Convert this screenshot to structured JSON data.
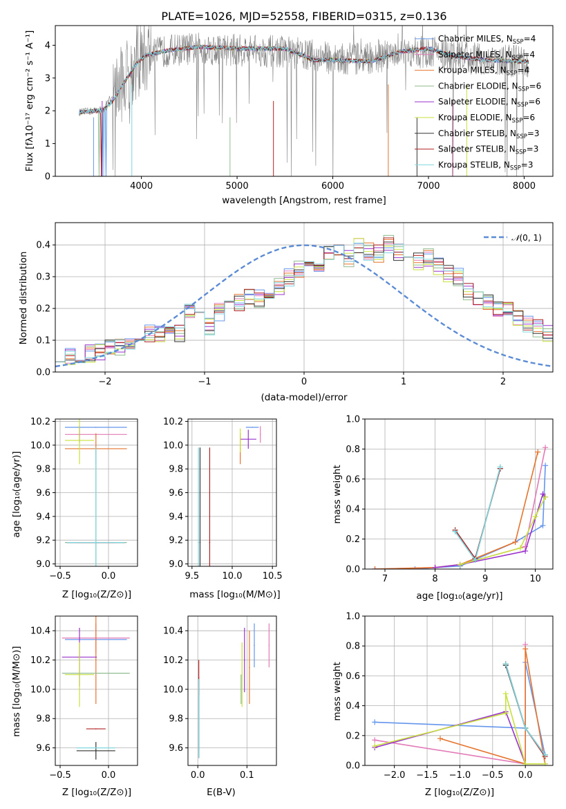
{
  "title": "PLATE=1026, MJD=52558, FIBERID=0315, z=0.136",
  "colors": [
    "#6495ED",
    "#E27AB7",
    "#E6732C",
    "#8FBC8F",
    "#9932CC",
    "#C8E03A",
    "#333333",
    "#B22222",
    "#7ED6DF"
  ],
  "legend_labels": [
    "Chabrier MILES, N",
    "Salpeter MILES, N",
    "Kroupa MILES, N",
    "Chabrier ELODIE, N",
    "Salpeter ELODIE, N",
    "Kroupa ELODIE, N",
    "Chabrier STELIB, N",
    "Salpeter STELIB, N",
    "Kroupa STELIB, N"
  ],
  "legend_nssp": [
    "=4",
    "=4",
    "=4",
    "=6",
    "=6",
    "=6",
    "=3",
    "=3",
    "=3"
  ],
  "legend_sub": "SSP",
  "hist_legend": "(0, 1)",
  "labels": {
    "spec_x": "wavelength [Angstrom, rest frame]",
    "spec_y": "Flux [fλ10⁻¹⁷ erg cm⁻² s⁻¹ A⁻¹]",
    "hist_x": "(data-model)/error",
    "hist_y": "Normed distribution",
    "zp_x": "Z [log₁₀(Z/Z⊙)]",
    "age_y": "age  [log₁₀(age/yr)]",
    "mass_x": "mass [log₁₀(M/M⊙)]",
    "mw_y": "mass weight",
    "mw_age_x": "age  [log₁₀(age/yr)]",
    "mass_y": "mass [log₁₀(M/M⊙)]",
    "ebv_x": "E(B-V)"
  },
  "chart_data": [
    {
      "type": "line",
      "title": "PLATE=1026, MJD=52558, FIBERID=0315, z=0.136",
      "xlabel": "wavelength [Angstrom, rest frame]",
      "ylabel": "Flux [fλ10⁻¹⁷ erg cm⁻² s⁻¹ A⁻¹]",
      "xlim": [
        3100,
        8300
      ],
      "ylim": [
        0,
        4.6
      ],
      "xticks": [
        4000,
        5000,
        6000,
        7000,
        8000
      ],
      "yticks": [
        0,
        1,
        2,
        3,
        4
      ],
      "grid": false,
      "legend": "upper right",
      "data_color": "#808080",
      "data_envelope": {
        "x": [
          3350,
          3500,
          3600,
          3700,
          3900,
          4000,
          4300,
          4600,
          5000,
          5500,
          6000,
          6400,
          6700,
          7000,
          7300,
          7600,
          8050
        ],
        "y": [
          1.95,
          2.0,
          2.05,
          2.5,
          3.25,
          3.65,
          3.85,
          3.9,
          3.85,
          3.8,
          3.6,
          3.6,
          3.75,
          3.8,
          3.65,
          3.55,
          3.5
        ]
      },
      "model": {
        "x": [
          3350,
          3500,
          3600,
          3700,
          3850,
          3950,
          4050,
          4300,
          4600,
          5000,
          5500,
          5800,
          6000,
          6400,
          6700,
          7000,
          7300,
          7600,
          8050
        ],
        "y": [
          1.95,
          2.0,
          2.0,
          2.3,
          3.0,
          3.45,
          3.7,
          3.85,
          3.95,
          3.9,
          3.9,
          3.55,
          3.55,
          3.5,
          3.8,
          3.9,
          3.65,
          3.55,
          3.5
        ]
      }
    },
    {
      "type": "bar",
      "xlabel": "(data-model)/error",
      "ylabel": "Normed distribution",
      "xlim": [
        -2.5,
        2.5
      ],
      "ylim": [
        0,
        0.47
      ],
      "xticks": [
        -2,
        -1,
        0,
        1,
        2
      ],
      "yticks": [
        0,
        0.1,
        0.2,
        0.3,
        0.4
      ],
      "grid": true,
      "legend": "upper right",
      "bin_width": 0.1,
      "bins_from": -2.5,
      "histogram_main": [
        0.06,
        0.045,
        0.05,
        0.06,
        0.058,
        0.075,
        0.08,
        0.09,
        0.1,
        0.12,
        0.125,
        0.13,
        0.12,
        0.19,
        0.17,
        0.14,
        0.19,
        0.21,
        0.22,
        0.24,
        0.23,
        0.26,
        0.27,
        0.3,
        0.32,
        0.35,
        0.34,
        0.37,
        0.39,
        0.36,
        0.4,
        0.38,
        0.37,
        0.4,
        0.38,
        0.37,
        0.35,
        0.36,
        0.33,
        0.31,
        0.3,
        0.25,
        0.23,
        0.22,
        0.2,
        0.19,
        0.17,
        0.15,
        0.14,
        0.12,
        0.1,
        0.09,
        0.08,
        0.07,
        0.06,
        0.055,
        0.05,
        0.045,
        0.04,
        0.05,
        0.055,
        0.05
      ],
      "gaussian": {
        "mu": 0,
        "sigma": 1
      }
    },
    {
      "type": "scatter",
      "xlabel": "Z [log₁₀(Z/Z⊙)]",
      "ylabel": "age  [log₁₀(age/yr)]",
      "xlim": [
        -0.55,
        0.3
      ],
      "ylim": [
        8.98,
        10.22
      ],
      "xticks": [
        -0.5,
        0.0
      ],
      "yticks": [
        9.0,
        9.2,
        9.4,
        9.6,
        9.8,
        10.0,
        10.2
      ],
      "grid": true,
      "points": [
        {
          "x": -0.13,
          "y": 10.15,
          "xerr": 0.32,
          "yerr": 0.0
        },
        {
          "x": -0.13,
          "y": 10.09,
          "xerr": 0.32,
          "yerr": 0.0
        },
        {
          "x": -0.13,
          "y": 9.97,
          "xerr": 0.32,
          "yerr": 0.13
        },
        {
          "x": -0.13,
          "y": 9.18,
          "xerr": 0.32,
          "yerr": 0.8
        },
        {
          "x": -0.3,
          "y": 10.09,
          "xerr": 0.0,
          "yerr": 0.07
        },
        {
          "x": -0.3,
          "y": 10.04,
          "xerr": 0.15,
          "yerr": 0.2
        },
        {
          "x": -0.13,
          "y": 9.18,
          "xerr": 0.3,
          "yerr": 0.0
        },
        {
          "x": -0.13,
          "y": 9.18,
          "xerr": 0.2,
          "yerr": 0.0
        },
        {
          "x": -0.13,
          "y": 9.18,
          "xerr": 0.3,
          "yerr": 0.8
        }
      ]
    },
    {
      "type": "scatter",
      "xlabel": "mass [log₁₀(M/M⊙)]",
      "xlim": [
        9.45,
        10.55
      ],
      "ylim": [
        8.98,
        10.22
      ],
      "xticks": [
        9.5,
        10.0,
        10.5
      ],
      "yticks": [
        9.0,
        9.2,
        9.4,
        9.6,
        9.8,
        10.0,
        10.2
      ],
      "grid": true,
      "points": [
        {
          "x": 10.25,
          "y": 10.15,
          "xerr": 0.08,
          "yerr": 0.0
        },
        {
          "x": 10.35,
          "y": 10.09,
          "xerr": 0.0,
          "yerr": 0.07
        },
        {
          "x": 10.1,
          "y": 9.97,
          "xerr": 0.0,
          "yerr": 0.13
        },
        {
          "x": 10.2,
          "y": 10.05,
          "xerr": 0.0,
          "yerr": 0.0
        },
        {
          "x": 10.2,
          "y": 10.05,
          "xerr": 0.1,
          "yerr": 0.08
        },
        {
          "x": 10.1,
          "y": 10.04,
          "xerr": 0.0,
          "yerr": 0.1
        },
        {
          "x": 9.6,
          "y": 9.18,
          "xerr": 0.0,
          "yerr": 0.8
        },
        {
          "x": 9.72,
          "y": 9.18,
          "xerr": 0.0,
          "yerr": 0.8
        },
        {
          "x": 9.58,
          "y": 9.18,
          "xerr": 0.0,
          "yerr": 0.8
        }
      ]
    },
    {
      "type": "line",
      "xlabel": "age  [log₁₀(age/yr)]",
      "ylabel": "mass weight",
      "xlim": [
        6.6,
        10.35
      ],
      "ylim": [
        0,
        1.0
      ],
      "xticks": [
        7,
        8,
        9,
        10
      ],
      "yticks": [
        0,
        0.2,
        0.4,
        0.6,
        0.8,
        1.0
      ],
      "grid": true,
      "series": [
        {
          "x": [
            6.8,
            7.6,
            8.0,
            8.5,
            9.6,
            10.15,
            10.2
          ],
          "y": [
            0.0,
            0.0,
            0.01,
            0.02,
            0.18,
            0.29,
            0.69
          ]
        },
        {
          "x": [
            6.8,
            8.0,
            8.5,
            9.8,
            10.2
          ],
          "y": [
            0.0,
            0.01,
            0.03,
            0.15,
            0.81
          ]
        },
        {
          "x": [
            6.8,
            8.0,
            8.5,
            9.6,
            10.05
          ],
          "y": [
            0.0,
            0.01,
            0.03,
            0.18,
            0.78
          ]
        },
        {
          "x": [
            8.4,
            8.8,
            9.3
          ],
          "y": [
            0.25,
            0.06,
            0.68
          ]
        },
        {
          "x": [
            8.0,
            8.5,
            9.8,
            10.15,
            10.2
          ],
          "y": [
            0.01,
            0.03,
            0.12,
            0.5,
            0.48
          ]
        },
        {
          "x": [
            8.5,
            9.7,
            10.0,
            10.2
          ],
          "y": [
            0.03,
            0.14,
            0.35,
            0.48
          ]
        },
        {
          "x": [
            8.4,
            8.8,
            9.3
          ],
          "y": [
            0.26,
            0.07,
            0.67
          ]
        },
        {
          "x": [
            8.4,
            8.8,
            9.3
          ],
          "y": [
            0.26,
            0.07,
            0.67
          ]
        },
        {
          "x": [
            8.4,
            8.8,
            9.3
          ],
          "y": [
            0.25,
            0.06,
            0.68
          ]
        }
      ]
    },
    {
      "type": "scatter",
      "xlabel": "Z [log₁₀(Z/Z⊙)]",
      "ylabel": "mass [log₁₀(M/M⊙)]",
      "xlim": [
        -0.55,
        0.3
      ],
      "ylim": [
        9.48,
        10.5
      ],
      "xticks": [
        -0.5,
        0.0
      ],
      "yticks": [
        9.6,
        9.8,
        10.0,
        10.2,
        10.4
      ],
      "grid": true,
      "points": [
        {
          "x": -0.13,
          "y": 10.34,
          "xerr": 0.32,
          "yerr": 0.0
        },
        {
          "x": -0.13,
          "y": 10.35,
          "xerr": 0.35,
          "yerr": 0.1
        },
        {
          "x": -0.13,
          "y": 10.2,
          "xerr": 0.0,
          "yerr": 0.3
        },
        {
          "x": -0.13,
          "y": 10.11,
          "xerr": 0.35,
          "yerr": 0.0
        },
        {
          "x": -0.3,
          "y": 10.22,
          "xerr": 0.18,
          "yerr": 0.2
        },
        {
          "x": -0.3,
          "y": 10.1,
          "xerr": 0.15,
          "yerr": 0.22
        },
        {
          "x": -0.13,
          "y": 9.58,
          "xerr": 0.2,
          "yerr": 0.06
        },
        {
          "x": -0.13,
          "y": 9.73,
          "xerr": 0.1,
          "yerr": 0.0
        },
        {
          "x": -0.13,
          "y": 9.6,
          "xerr": 0.2,
          "yerr": 0.0
        }
      ]
    },
    {
      "type": "scatter",
      "xlabel": "E(B-V)",
      "xlim": [
        -0.02,
        0.16
      ],
      "ylim": [
        9.48,
        10.5
      ],
      "xticks": [
        0.0,
        0.1
      ],
      "yticks": [
        9.6,
        9.8,
        10.0,
        10.2,
        10.4
      ],
      "grid": true,
      "points": [
        {
          "x": 0.115,
          "y": 10.3,
          "xerr": 0.0,
          "yerr": 0.15
        },
        {
          "x": 0.145,
          "y": 10.3,
          "xerr": 0.0,
          "yerr": 0.15
        },
        {
          "x": 0.105,
          "y": 10.15,
          "xerr": 0.0,
          "yerr": 0.25
        },
        {
          "x": 0.088,
          "y": 10.0,
          "xerr": 0.0,
          "yerr": 0.1
        },
        {
          "x": 0.095,
          "y": 10.2,
          "xerr": 0.0,
          "yerr": 0.22
        },
        {
          "x": 0.09,
          "y": 10.1,
          "xerr": 0.0,
          "yerr": 0.22
        },
        {
          "x": 0.002,
          "y": 9.8,
          "xerr": 0.0,
          "yerr": 0.27
        },
        {
          "x": 0.002,
          "y": 10.08,
          "xerr": 0.0,
          "yerr": 0.12
        },
        {
          "x": 0.002,
          "y": 9.8,
          "xerr": 0.0,
          "yerr": 0.27
        }
      ]
    },
    {
      "type": "line",
      "xlabel": "Z [log₁₀(Z/Z⊙)]",
      "ylabel": "mass weight",
      "xlim": [
        -2.45,
        0.42
      ],
      "ylim": [
        0,
        1.0
      ],
      "xticks": [
        -2.0,
        -1.5,
        -1.0,
        -0.5,
        0.0
      ],
      "yticks": [
        0,
        0.2,
        0.4,
        0.6,
        0.8,
        1.0
      ],
      "grid": true,
      "series": [
        {
          "x": [
            -2.3,
            0.0,
            0.0,
            0.3
          ],
          "y": [
            0.29,
            0.25,
            0.69,
            0.07
          ]
        },
        {
          "x": [
            -2.3,
            0.0,
            0.0
          ],
          "y": [
            0.17,
            0.01,
            0.81
          ]
        },
        {
          "x": [
            -1.3,
            0.0,
            0.0,
            0.3
          ],
          "y": [
            0.18,
            0.01,
            0.78,
            0.01
          ]
        },
        {
          "x": [
            -0.3,
            0.0,
            0.3
          ],
          "y": [
            0.68,
            0.25,
            0.06
          ]
        },
        {
          "x": [
            -2.3,
            -0.3,
            0.0,
            0.3
          ],
          "y": [
            0.12,
            0.36,
            0.01,
            0.01
          ]
        },
        {
          "x": [
            -2.3,
            -0.3,
            -0.3,
            0.0,
            0.3
          ],
          "y": [
            0.13,
            0.35,
            0.48,
            0.01,
            0.01
          ]
        },
        {
          "x": [
            -0.3,
            0.0,
            0.3
          ],
          "y": [
            0.67,
            0.25,
            0.07
          ]
        },
        {
          "x": [
            -0.3,
            0.0,
            0.3
          ],
          "y": [
            0.68,
            0.25,
            0.06
          ]
        },
        {
          "x": [
            -0.3,
            0.0,
            0.3
          ],
          "y": [
            0.68,
            0.25,
            0.07
          ]
        }
      ]
    }
  ]
}
